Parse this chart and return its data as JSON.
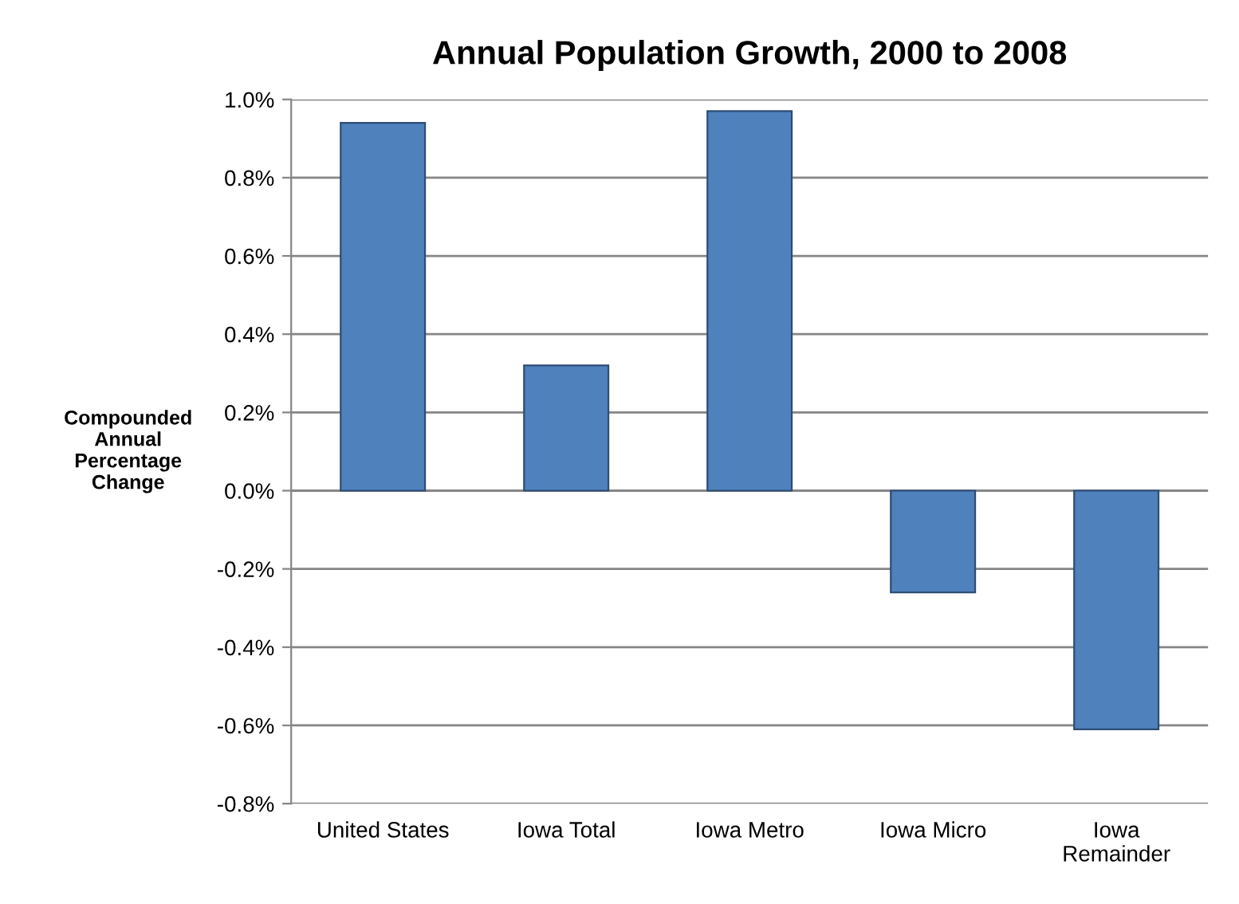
{
  "chart_data": {
    "type": "bar",
    "title": "Annual Population Growth, 2000 to 2008",
    "ylabel": "Compounded\nAnnual\nPercentage\nChange",
    "categories": [
      "United States",
      "Iowa Total",
      "Iowa Metro",
      "Iowa Micro",
      "Iowa\nRemainder"
    ],
    "values": [
      0.94,
      0.32,
      0.97,
      -0.26,
      -0.61
    ],
    "color": "#4f81bd",
    "ylim": [
      -0.8,
      1.0
    ],
    "yticks": [
      {
        "value": -0.8,
        "label": "-0.8%"
      },
      {
        "value": -0.6,
        "label": "-0.6%"
      },
      {
        "value": -0.4,
        "label": "-0.4%"
      },
      {
        "value": -0.2,
        "label": "-0.2%"
      },
      {
        "value": 0.0,
        "label": "0.0%"
      },
      {
        "value": 0.2,
        "label": "0.2%"
      },
      {
        "value": 0.4,
        "label": "0.4%"
      },
      {
        "value": 0.6,
        "label": "0.6%"
      },
      {
        "value": 0.8,
        "label": "0.8%"
      },
      {
        "value": 1.0,
        "label": "1.0%"
      }
    ],
    "grid": "y"
  }
}
